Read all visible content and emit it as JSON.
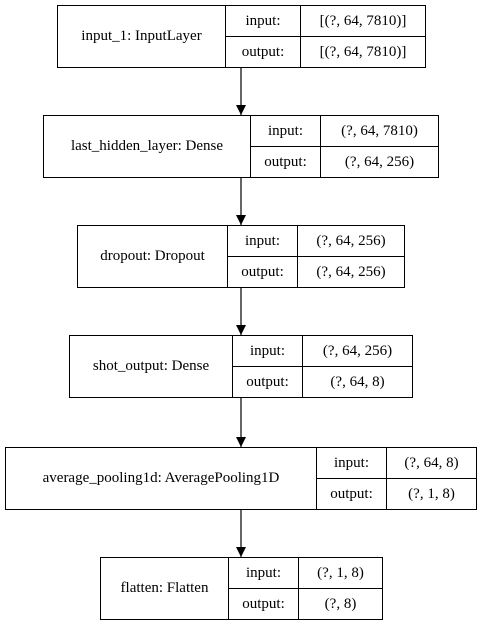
{
  "layers": [
    {
      "name": "input_1: InputLayer",
      "input_label": "input:",
      "input_value": "[(?, 64, 7810)]",
      "output_label": "output:",
      "output_value": "[(?, 64, 7810)]"
    },
    {
      "name": "last_hidden_layer: Dense",
      "input_label": "input:",
      "input_value": "(?, 64, 7810)",
      "output_label": "output:",
      "output_value": "(?, 64, 256)"
    },
    {
      "name": "dropout: Dropout",
      "input_label": "input:",
      "input_value": "(?, 64, 256)",
      "output_label": "output:",
      "output_value": "(?, 64, 256)"
    },
    {
      "name": "shot_output: Dense",
      "input_label": "input:",
      "input_value": "(?, 64, 256)",
      "output_label": "output:",
      "output_value": "(?, 64, 8)"
    },
    {
      "name": "average_pooling1d: AveragePooling1D",
      "input_label": "input:",
      "input_value": "(?, 64, 8)",
      "output_label": "output:",
      "output_value": "(?, 1, 8)"
    },
    {
      "name": "flatten: Flatten",
      "input_label": "input:",
      "input_value": "(?, 1, 8)",
      "output_label": "output:",
      "output_value": "(?, 8)"
    }
  ]
}
